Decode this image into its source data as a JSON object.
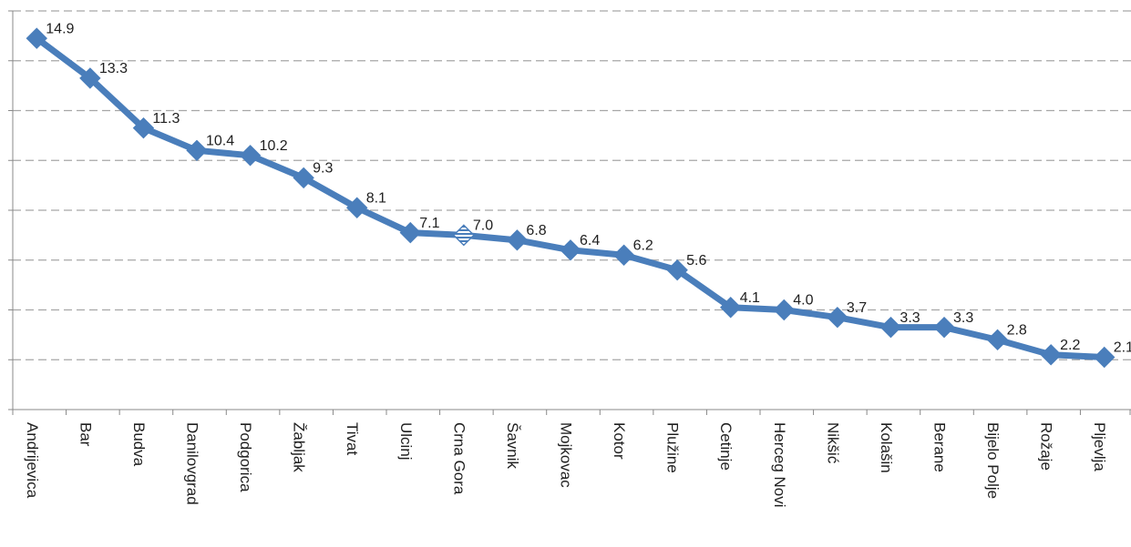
{
  "chart_data": {
    "type": "line",
    "categories": [
      "Andrijevica",
      "Bar",
      "Budva",
      "Danilovgrad",
      "Podgorica",
      "Žabljak",
      "Tivat",
      "Ulcinj",
      "Crna Gora",
      "Šavnik",
      "Mojkovac",
      "Kotor",
      "Plužine",
      "Cetinje",
      "Herceg Novi",
      "Nikšić",
      "Kolašin",
      "Berane",
      "Bijelo Polje",
      "Rožaje",
      "Pljevlja"
    ],
    "values": [
      14.9,
      13.3,
      11.3,
      10.4,
      10.2,
      9.3,
      8.1,
      7.1,
      7.0,
      6.8,
      6.4,
      6.2,
      5.6,
      4.1,
      4.0,
      3.7,
      3.3,
      3.3,
      2.8,
      2.2,
      2.1
    ],
    "value_labels": [
      "14.9",
      "13.3",
      "11.3",
      "10.4",
      "10.2",
      "9.3",
      "8.1",
      "7.1",
      "7.0",
      "6.8",
      "6.4",
      "6.2",
      "5.6",
      "4.1",
      "4.0",
      "3.7",
      "3.3",
      "3.3",
      "2.8",
      "2.2",
      "2.1"
    ],
    "color": "#4a7ebb",
    "highlight_index": 8,
    "ylim": [
      0,
      16
    ],
    "yticks": [
      0,
      2,
      4,
      6,
      8,
      10,
      12,
      14,
      16
    ],
    "grid": true
  }
}
